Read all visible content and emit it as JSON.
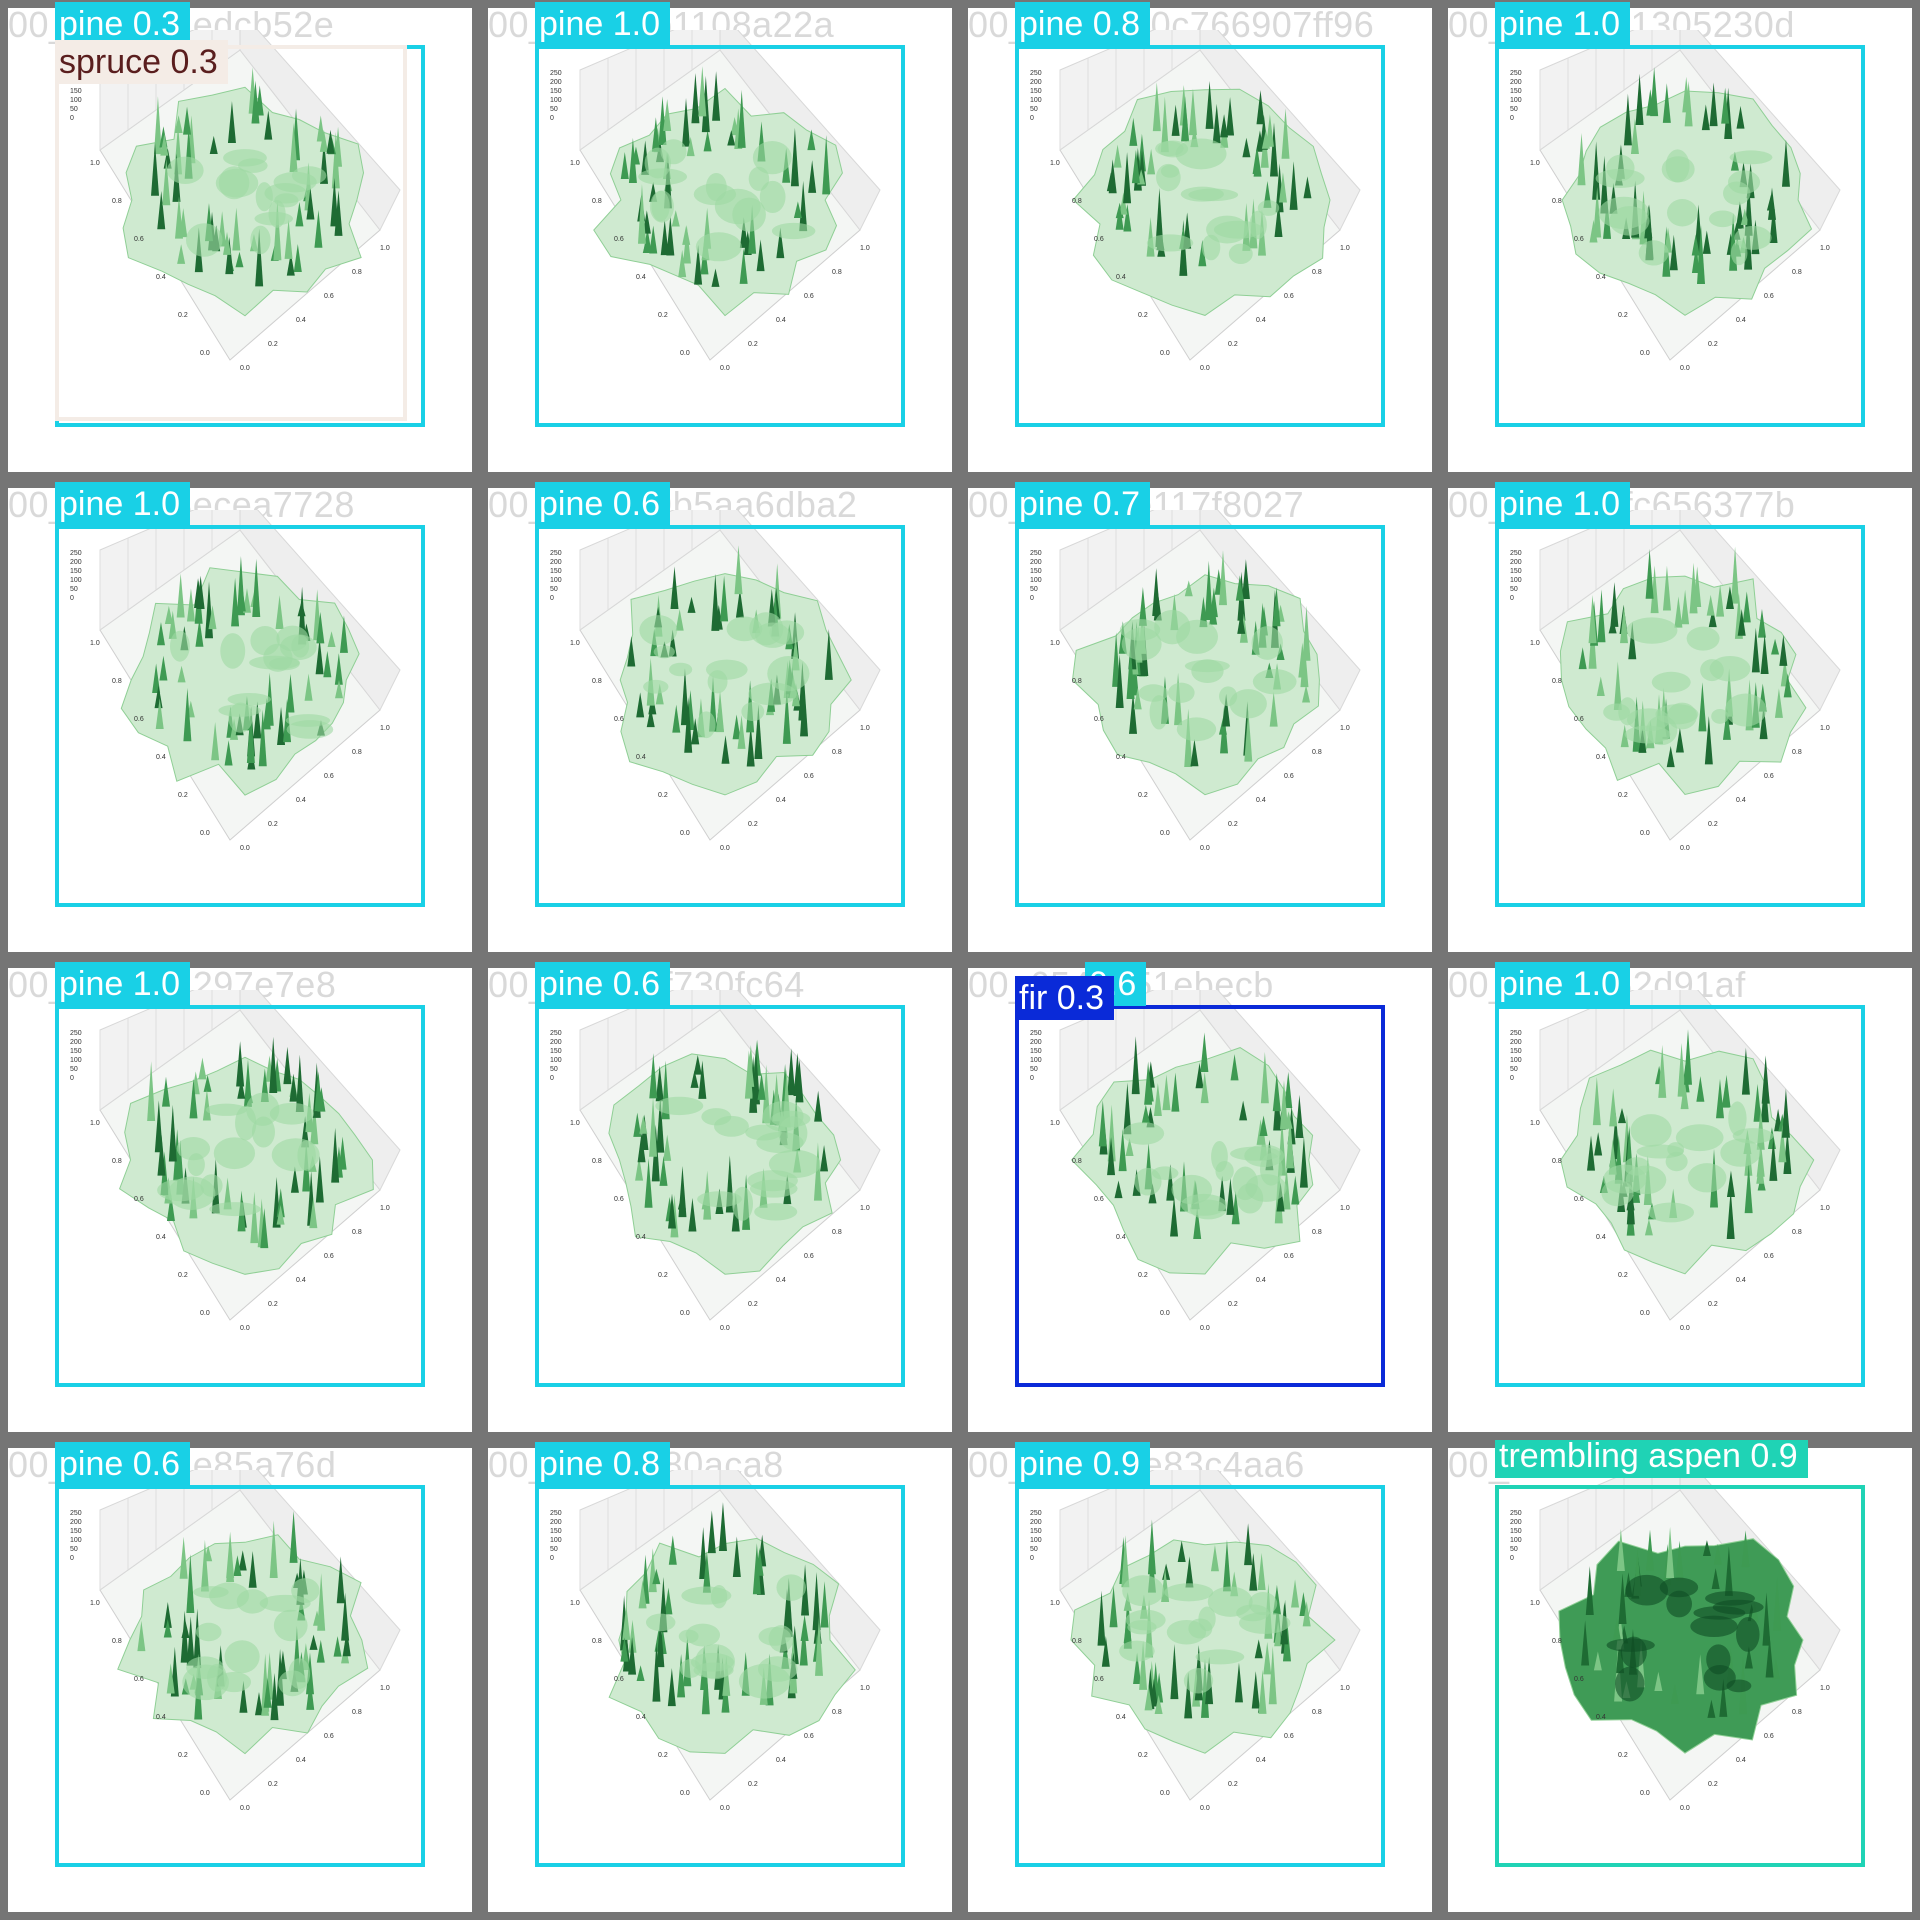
{
  "colors": {
    "pine": "#19d0e6",
    "spruce": "#f4ece6",
    "fir": "#0a2ad8",
    "trembling_aspen": "#1fd3b5"
  },
  "tiles": [
    {
      "file": "00_e21d72edcb52e",
      "label": "pine 0.3",
      "label2": "spruce 0.3",
      "cls": "pine"
    },
    {
      "file": "00_68362b1108a22a",
      "label": "pine 1.0",
      "cls": "pine"
    },
    {
      "file": "00_8ad30c0c766907ff96",
      "label": "pine 0.8",
      "cls": "pine"
    },
    {
      "file": "00_dc59a21305230d",
      "label": "pine 1.0",
      "cls": "pine"
    },
    {
      "file": "00_7e91e8ecea7728",
      "label": "pine 1.0",
      "cls": "pine"
    },
    {
      "file": "00_366709b5aa6dba2",
      "label": "pine 0.6",
      "cls": "pine"
    },
    {
      "file": "00_99253e117f8027",
      "label": "pine 0.7",
      "cls": "pine"
    },
    {
      "file": "00_a7f9b1fc656377b",
      "label": "pine 1.0",
      "cls": "pine"
    },
    {
      "file": "00_db38ba297e7e8",
      "label": "pine 1.0",
      "cls": "pine"
    },
    {
      "file": "00_f8064ef730fc64",
      "label": "pine 0.6",
      "cls": "pine"
    },
    {
      "file": "00_6545151ebecb",
      "label": "fir 0.3",
      "label_behind": "0.6",
      "cls": "fir"
    },
    {
      "file": "00_2b84e62d91af",
      "label": "pine 1.0",
      "cls": "pine"
    },
    {
      "file": "00_21e29de85a76d",
      "label": "pine 0.6",
      "cls": "pine"
    },
    {
      "file": "00_24871f80aca8",
      "label": "pine 0.8",
      "cls": "pine"
    },
    {
      "file": "00_a8f871e83c4aa6",
      "label": "pine 0.9",
      "cls": "pine"
    },
    {
      "file": "00_4b13a",
      "label": "trembling aspen 0.9",
      "cls": "aspen"
    }
  ],
  "plot_axes": {
    "z_ticks": [
      "250",
      "200",
      "150",
      "100",
      "50",
      "0"
    ],
    "y_ticks": [
      "1.0",
      "0.8",
      "0.6",
      "0.4",
      "0.2",
      "0.0"
    ],
    "x_ticks": [
      "0.0",
      "0.2",
      "0.4",
      "0.6",
      "0.8",
      "1.0"
    ]
  }
}
